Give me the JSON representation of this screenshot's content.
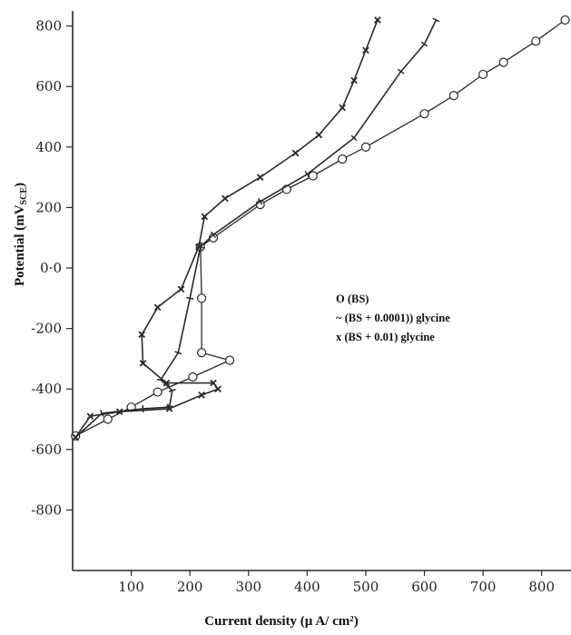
{
  "chart_data": {
    "type": "line",
    "title": "",
    "xlabel": "Current density (µ A/ cm²)",
    "ylabel": "Potential (mV",
    "ylabel_sub": "SCE",
    "ylabel_close": ")",
    "xlim": [
      0,
      850
    ],
    "ylim": [
      -1000,
      850
    ],
    "x_ticks": [
      {
        "value": 100,
        "label": "100"
      },
      {
        "value": 200,
        "label": "200"
      },
      {
        "value": 300,
        "label": "300"
      },
      {
        "value": 400,
        "label": "400"
      },
      {
        "value": 500,
        "label": "500"
      },
      {
        "value": 600,
        "label": "600"
      },
      {
        "value": 700,
        "label": "700"
      },
      {
        "value": 800,
        "label": "800"
      }
    ],
    "y_ticks": [
      {
        "value": 800,
        "label": "800"
      },
      {
        "value": 600,
        "label": "600"
      },
      {
        "value": 400,
        "label": "400"
      },
      {
        "value": 200,
        "label": "200"
      },
      {
        "value": 0,
        "label": "0·0"
      },
      {
        "value": -200,
        "label": "-200"
      },
      {
        "value": -400,
        "label": "-400"
      },
      {
        "value": -600,
        "label": "-600"
      },
      {
        "value": -800,
        "label": "-800"
      }
    ],
    "grid": false,
    "legend": [
      {
        "label": "O (BS)"
      },
      {
        "label": "~ (BS + 0.0001)) glycine"
      },
      {
        "label": "x (BS + 0.01)  glycine"
      }
    ],
    "series": [
      {
        "marker": "circle",
        "points": [
          [
            5,
            -555
          ],
          [
            60,
            -500
          ],
          [
            100,
            -460
          ],
          [
            145,
            -410
          ],
          [
            205,
            -360
          ],
          [
            268,
            -305
          ],
          [
            220,
            -280
          ],
          [
            220,
            -100
          ],
          [
            218,
            70
          ],
          [
            240,
            100
          ],
          [
            320,
            210
          ],
          [
            365,
            260
          ],
          [
            410,
            305
          ],
          [
            460,
            360
          ],
          [
            500,
            400
          ],
          [
            600,
            510
          ],
          [
            650,
            570
          ],
          [
            700,
            640
          ],
          [
            735,
            680
          ],
          [
            790,
            750
          ],
          [
            840,
            820
          ]
        ]
      },
      {
        "marker": "tilde",
        "points": [
          [
            5,
            -560
          ],
          [
            50,
            -480
          ],
          [
            120,
            -465
          ],
          [
            165,
            -460
          ],
          [
            170,
            -405
          ],
          [
            150,
            -370
          ],
          [
            180,
            -280
          ],
          [
            200,
            -100
          ],
          [
            218,
            70
          ],
          [
            240,
            110
          ],
          [
            320,
            220
          ],
          [
            400,
            310
          ],
          [
            480,
            430
          ],
          [
            560,
            650
          ],
          [
            600,
            740
          ],
          [
            620,
            820
          ]
        ]
      },
      {
        "marker": "cross",
        "points": [
          [
            5,
            -560
          ],
          [
            30,
            -490
          ],
          [
            80,
            -475
          ],
          [
            165,
            -465
          ],
          [
            220,
            -420
          ],
          [
            248,
            -400
          ],
          [
            240,
            -380
          ],
          [
            160,
            -380
          ],
          [
            120,
            -315
          ],
          [
            118,
            -220
          ],
          [
            145,
            -130
          ],
          [
            185,
            -70
          ],
          [
            215,
            70
          ],
          [
            225,
            170
          ],
          [
            260,
            230
          ],
          [
            320,
            300
          ],
          [
            380,
            380
          ],
          [
            420,
            440
          ],
          [
            460,
            530
          ],
          [
            480,
            620
          ],
          [
            500,
            720
          ],
          [
            520,
            820
          ]
        ]
      }
    ],
    "colors": {
      "line": "#2a2a2a",
      "axis": "#2a2a2a",
      "background": "#ffffff"
    }
  }
}
